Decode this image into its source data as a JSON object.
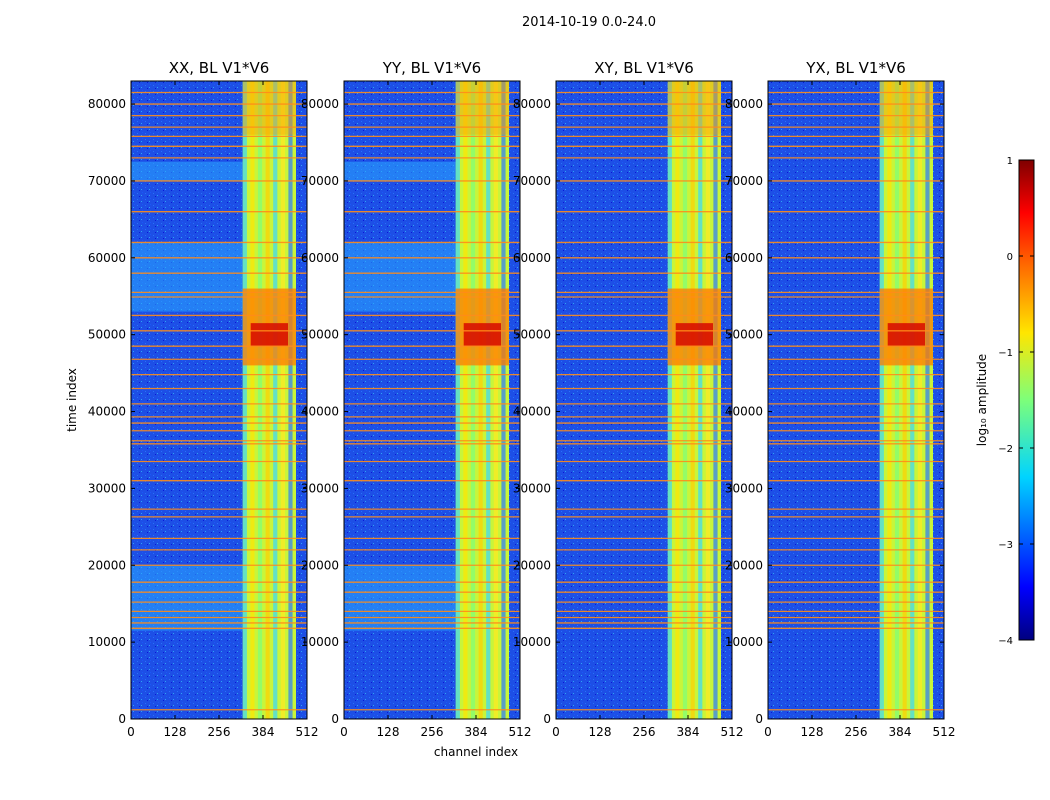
{
  "chart_data": {
    "type": "heatmap",
    "title": "2014-10-19 0.0-24.0",
    "xlabel": "channel index",
    "ylabel": "time index",
    "xlim": [
      0,
      512
    ],
    "ylim": [
      0,
      83000
    ],
    "x_ticks": [
      0,
      128,
      256,
      384,
      512
    ],
    "y_ticks": [
      0,
      10000,
      20000,
      30000,
      40000,
      50000,
      60000,
      70000,
      80000
    ],
    "panels": [
      {
        "title": "XX, BL V1*V6",
        "rfi_channel_range": [
          325,
          480
        ],
        "high_time_range": [
          46000,
          56000
        ],
        "low_power_bands": [
          [
            11500,
            20000
          ],
          [
            53000,
            62000
          ],
          [
            70000,
            72500
          ]
        ]
      },
      {
        "title": "YY, BL V1*V6",
        "rfi_channel_range": [
          325,
          480
        ],
        "high_time_range": [
          46000,
          56000
        ],
        "low_power_bands": [
          [
            11500,
            20000
          ],
          [
            53000,
            62000
          ],
          [
            70000,
            72500
          ]
        ]
      },
      {
        "title": "XY, BL V1*V6",
        "rfi_channel_range": [
          325,
          480
        ],
        "high_time_range": [
          46000,
          56000
        ],
        "low_power_bands": []
      },
      {
        "title": "YX, BL V1*V6",
        "rfi_channel_range": [
          325,
          480
        ],
        "high_time_range": [
          46000,
          56000
        ],
        "low_power_bands": []
      }
    ],
    "flagged_rows": [
      1200,
      11800,
      12500,
      13200,
      14000,
      15200,
      16500,
      17800,
      20000,
      22000,
      23500,
      26300,
      27300,
      31000,
      33500,
      35800,
      36200,
      37500,
      38500,
      39300,
      41000,
      43000,
      44800,
      46800,
      48500,
      50500,
      52500,
      54900,
      55500,
      58000,
      60000,
      62000,
      66000,
      70000,
      73000,
      74500,
      75800,
      77000,
      78500,
      80000,
      81500
    ],
    "colorbar": {
      "label": "log₁₀ amplitude",
      "ticks": [
        1,
        0,
        -1,
        -2,
        -3,
        -4
      ],
      "range": [
        -4,
        1
      ],
      "colormap": "jet"
    }
  }
}
